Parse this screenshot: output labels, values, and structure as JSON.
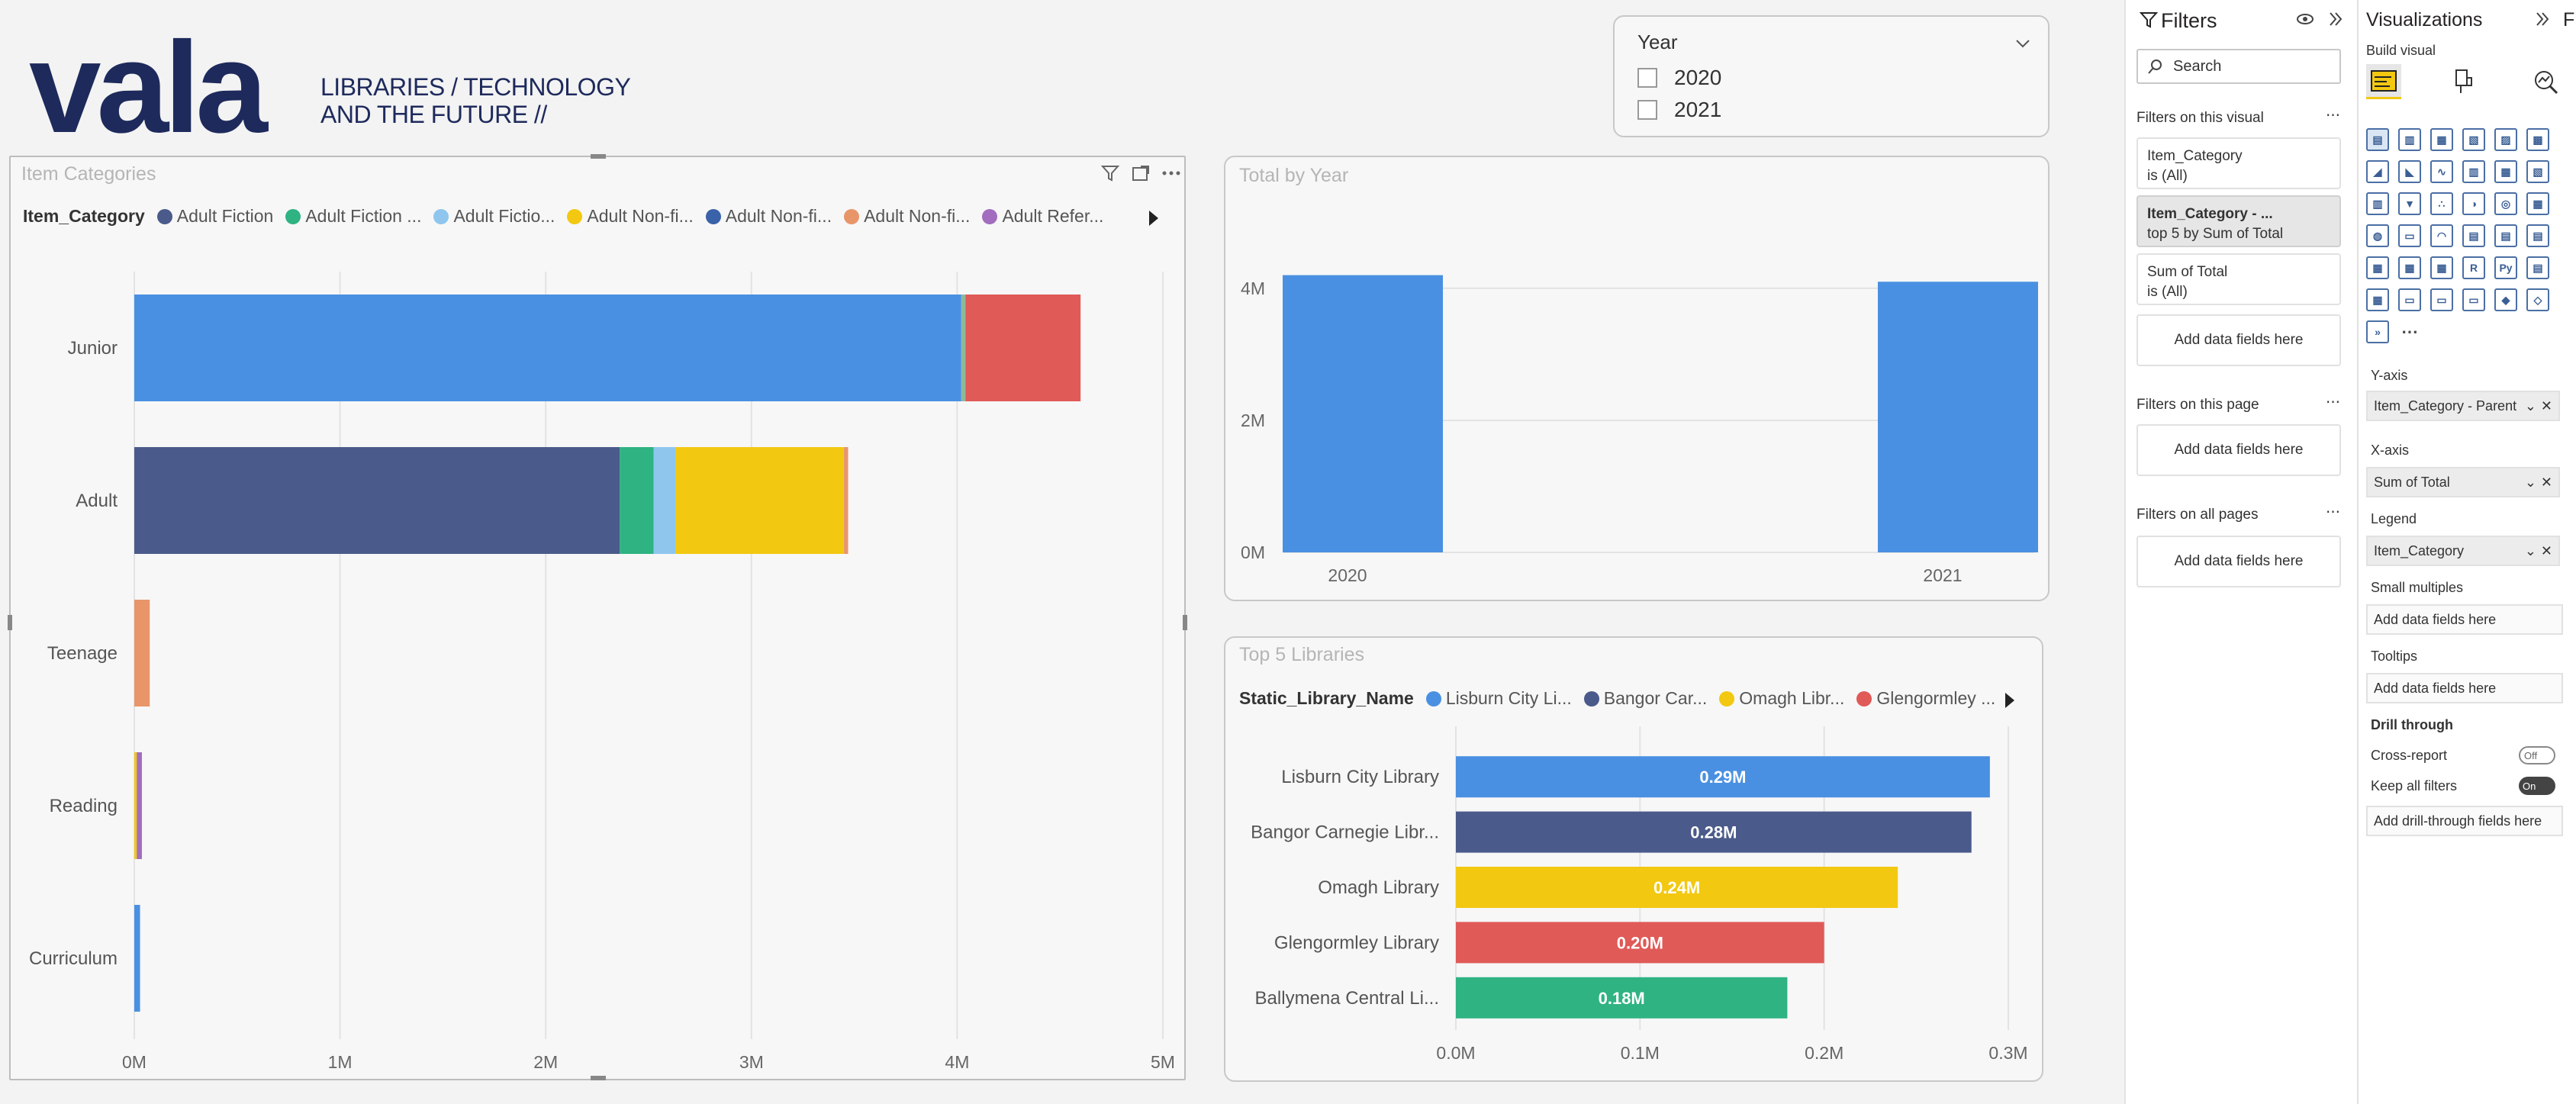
{
  "brand": {
    "logo_text": "vala",
    "tagline_1": "LIBRARIES / TECHNOLOGY",
    "tagline_2": "AND THE FUTURE //"
  },
  "colors": {
    "blue": "#4a90e2",
    "navy": "#4a5a8a",
    "green": "#2fb383",
    "lightblue": "#8ec6ee",
    "yellow": "#f2c811",
    "darkblue": "#3a62a8",
    "peach": "#e8956a",
    "purple": "#a26dbf",
    "red": "#e05a57",
    "brand": "#1e2a5c"
  },
  "slicer": {
    "title": "Year",
    "items": [
      "2020",
      "2021"
    ]
  },
  "item_categories": {
    "title": "Item Categories",
    "legend_label": "Item_Category",
    "legend": [
      {
        "label": "Adult Fiction",
        "color": "#4a5a8a"
      },
      {
        "label": "Adult Fiction ...",
        "color": "#2fb383"
      },
      {
        "label": "Adult Fictio...",
        "color": "#8ec6ee"
      },
      {
        "label": "Adult Non-fi...",
        "color": "#f2c811"
      },
      {
        "label": "Adult Non-fi...",
        "color": "#3a62a8"
      },
      {
        "label": "Adult Non-fi...",
        "color": "#e8956a"
      },
      {
        "label": "Adult Refer...",
        "color": "#a26dbf"
      }
    ]
  },
  "total_by_year": {
    "title": "Total by Year"
  },
  "top5": {
    "title": "Top 5 Libraries",
    "legend_label": "Static_Library_Name",
    "legend": [
      {
        "label": "Lisburn City Li...",
        "color": "#4a90e2"
      },
      {
        "label": "Bangor Car...",
        "color": "#4a5a8a"
      },
      {
        "label": "Omagh Libr...",
        "color": "#f2c811"
      },
      {
        "label": "Glengormley ...",
        "color": "#e05a57"
      }
    ]
  },
  "chart_data": [
    {
      "type": "bar",
      "orientation": "horizontal",
      "stacked": true,
      "title": "Item Categories",
      "categories": [
        "Junior",
        "Adult",
        "Teenage",
        "Reading",
        "Curriculum"
      ],
      "xlim": [
        0,
        5000000
      ],
      "xticks": [
        "0M",
        "1M",
        "2M",
        "3M",
        "4M",
        "5M"
      ],
      "grid": true,
      "legend_position": "top",
      "stacks": [
        [
          {
            "value": 4020000,
            "color": "#4a90e2"
          },
          {
            "value": 20000,
            "color": "#8fb89a"
          },
          {
            "value": 560000,
            "color": "#e05a57"
          }
        ],
        [
          {
            "value": 2360000,
            "color": "#4a5a8a"
          },
          {
            "value": 165000,
            "color": "#2fb383"
          },
          {
            "value": 105000,
            "color": "#8ec6ee"
          },
          {
            "value": 820000,
            "color": "#f2c811"
          },
          {
            "value": 20000,
            "color": "#e8956a"
          }
        ],
        [
          {
            "value": 75000,
            "color": "#e8956a"
          }
        ],
        [
          {
            "value": 12000,
            "color": "#f2c811"
          },
          {
            "value": 25000,
            "color": "#a26dbf"
          }
        ],
        [
          {
            "value": 28000,
            "color": "#4a90e2"
          }
        ]
      ]
    },
    {
      "type": "bar",
      "title": "Total by Year",
      "categories": [
        "2020",
        "2021"
      ],
      "values": [
        4200000,
        4100000
      ],
      "ylim": [
        0,
        4600000
      ],
      "yticks": [
        "0M",
        "2M",
        "4M"
      ],
      "grid": true,
      "color": "#4a90e2"
    },
    {
      "type": "bar",
      "orientation": "horizontal",
      "title": "Top 5 Libraries",
      "categories": [
        "Lisburn City Library",
        "Bangor Carnegie Libr...",
        "Omagh Library",
        "Glengormley Library",
        "Ballymena Central Li..."
      ],
      "values": [
        0.29,
        0.28,
        0.24,
        0.2,
        0.18
      ],
      "data_labels": [
        "0.29M",
        "0.28M",
        "0.24M",
        "0.20M",
        "0.18M"
      ],
      "colors": [
        "#4a90e2",
        "#4a5a8a",
        "#f2c811",
        "#e05a57",
        "#2fb383"
      ],
      "xlim": [
        0,
        0.3
      ],
      "xticks": [
        "0.0M",
        "0.1M",
        "0.2M",
        "0.3M"
      ],
      "grid": true
    }
  ],
  "filters": {
    "title": "Filters",
    "search_placeholder": "Search",
    "on_visual_label": "Filters on this visual",
    "visual_filters": [
      {
        "name": "Item_Category",
        "state": "is (All)",
        "active": false
      },
      {
        "name": "Item_Category - ...",
        "state": "top 5 by Sum of Total",
        "active": true
      },
      {
        "name": "Sum of Total",
        "state": "is (All)",
        "active": false
      }
    ],
    "add_fields": "Add data fields here",
    "on_page_label": "Filters on this page",
    "on_all_label": "Filters on all pages"
  },
  "visualizations": {
    "title": "Visualizations",
    "build_visual": "Build visual",
    "yaxis_label": "Y-axis",
    "yaxis_value": "Item_Category - Parent",
    "xaxis_label": "X-axis",
    "xaxis_value": "Sum of Total",
    "legend_label": "Legend",
    "legend_value": "Item_Category",
    "small_multiples_label": "Small multiples",
    "tooltips_label": "Tooltips",
    "add_fields": "Add data fields here",
    "drill_through_label": "Drill through",
    "cross_report_label": "Cross-report",
    "cross_report_state": "Off",
    "keep_filters_label": "Keep all filters",
    "keep_filters_state": "On",
    "drill_add": "Add drill-through fields here",
    "edge_label": "F"
  }
}
